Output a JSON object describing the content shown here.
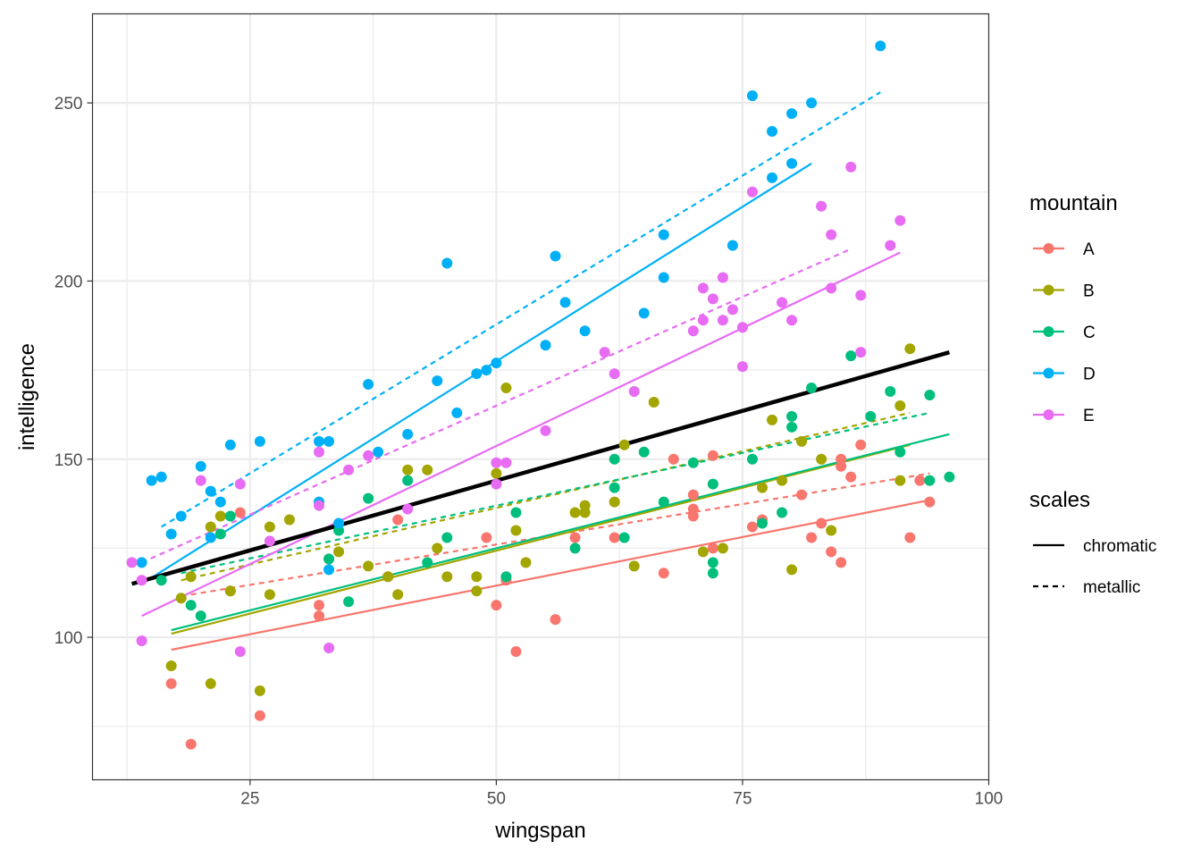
{
  "chart_data": {
    "type": "scatter",
    "xlabel": "wingspan",
    "ylabel": "intelligence",
    "xlim": [
      9,
      100
    ],
    "ylim": [
      60,
      275
    ],
    "xticks": [
      25,
      50,
      75,
      100
    ],
    "xtick_labels": [
      "25",
      "50",
      "75",
      "100"
    ],
    "yticks": [
      100,
      150,
      200,
      250
    ],
    "ytick_labels": [
      "100",
      "150",
      "200",
      "250"
    ],
    "legend_color_title": "mountain",
    "legend_linetype_title": "scales",
    "colors": {
      "A": "#F8766D",
      "B": "#A3A500",
      "C": "#00BF7D",
      "D": "#00B0F6",
      "E": "#E76BF3",
      "overall": "#000000"
    },
    "series": [
      {
        "name": "A",
        "points": [
          [
            19,
            70
          ],
          [
            26,
            78
          ],
          [
            17,
            87
          ],
          [
            23,
            113
          ],
          [
            32,
            106
          ],
          [
            32,
            109
          ],
          [
            33,
            122
          ],
          [
            39,
            117
          ],
          [
            40,
            133
          ],
          [
            49,
            128
          ],
          [
            50,
            109
          ],
          [
            51,
            116
          ],
          [
            52,
            96
          ],
          [
            56,
            105
          ],
          [
            58,
            128
          ],
          [
            62,
            128
          ],
          [
            67,
            118
          ],
          [
            68,
            150
          ],
          [
            70,
            134
          ],
          [
            70,
            136
          ],
          [
            70,
            140
          ],
          [
            72,
            125
          ],
          [
            72,
            151
          ],
          [
            76,
            131
          ],
          [
            77,
            133
          ],
          [
            81,
            140
          ],
          [
            82,
            128
          ],
          [
            83,
            132
          ],
          [
            84,
            124
          ],
          [
            85,
            121
          ],
          [
            85,
            148
          ],
          [
            85,
            150
          ],
          [
            86,
            145
          ],
          [
            87,
            154
          ],
          [
            92,
            128
          ],
          [
            93,
            144
          ],
          [
            94,
            138
          ],
          [
            24,
            135
          ]
        ]
      },
      {
        "name": "B",
        "points": [
          [
            17,
            92
          ],
          [
            18,
            111
          ],
          [
            19,
            117
          ],
          [
            21,
            131
          ],
          [
            21,
            87
          ],
          [
            22,
            134
          ],
          [
            23,
            113
          ],
          [
            26,
            85
          ],
          [
            27,
            112
          ],
          [
            27,
            131
          ],
          [
            29,
            133
          ],
          [
            34,
            124
          ],
          [
            37,
            120
          ],
          [
            39,
            117
          ],
          [
            40,
            112
          ],
          [
            41,
            147
          ],
          [
            43,
            147
          ],
          [
            44,
            125
          ],
          [
            45,
            117
          ],
          [
            48,
            113
          ],
          [
            48,
            117
          ],
          [
            50,
            146
          ],
          [
            51,
            170
          ],
          [
            52,
            130
          ],
          [
            53,
            121
          ],
          [
            58,
            135
          ],
          [
            59,
            137
          ],
          [
            59,
            135
          ],
          [
            62,
            138
          ],
          [
            63,
            154
          ],
          [
            64,
            120
          ],
          [
            66,
            166
          ],
          [
            71,
            124
          ],
          [
            73,
            125
          ],
          [
            77,
            142
          ],
          [
            78,
            161
          ],
          [
            79,
            144
          ],
          [
            80,
            119
          ],
          [
            81,
            155
          ],
          [
            83,
            150
          ],
          [
            84,
            130
          ],
          [
            91,
            144
          ],
          [
            91,
            165
          ],
          [
            92,
            181
          ]
        ]
      },
      {
        "name": "C",
        "points": [
          [
            16,
            116
          ],
          [
            19,
            109
          ],
          [
            20,
            106
          ],
          [
            22,
            129
          ],
          [
            23,
            134
          ],
          [
            33,
            122
          ],
          [
            34,
            130
          ],
          [
            35,
            110
          ],
          [
            37,
            139
          ],
          [
            41,
            144
          ],
          [
            43,
            121
          ],
          [
            45,
            128
          ],
          [
            51,
            117
          ],
          [
            52,
            135
          ],
          [
            58,
            125
          ],
          [
            62,
            150
          ],
          [
            62,
            142
          ],
          [
            63,
            128
          ],
          [
            65,
            152
          ],
          [
            67,
            138
          ],
          [
            70,
            149
          ],
          [
            72,
            143
          ],
          [
            72,
            121
          ],
          [
            72,
            118
          ],
          [
            76,
            150
          ],
          [
            77,
            132
          ],
          [
            79,
            135
          ],
          [
            80,
            159
          ],
          [
            80,
            162
          ],
          [
            82,
            170
          ],
          [
            86,
            179
          ],
          [
            88,
            162
          ],
          [
            90,
            169
          ],
          [
            91,
            152
          ],
          [
            94,
            144
          ],
          [
            94,
            168
          ],
          [
            96,
            145
          ]
        ]
      },
      {
        "name": "D",
        "points": [
          [
            14,
            121
          ],
          [
            15,
            144
          ],
          [
            16,
            145
          ],
          [
            17,
            129
          ],
          [
            18,
            134
          ],
          [
            20,
            148
          ],
          [
            21,
            128
          ],
          [
            21,
            141
          ],
          [
            22,
            138
          ],
          [
            23,
            154
          ],
          [
            26,
            155
          ],
          [
            32,
            155
          ],
          [
            32,
            138
          ],
          [
            33,
            155
          ],
          [
            33,
            119
          ],
          [
            34,
            132
          ],
          [
            37,
            171
          ],
          [
            38,
            152
          ],
          [
            41,
            157
          ],
          [
            44,
            172
          ],
          [
            45,
            205
          ],
          [
            46,
            163
          ],
          [
            48,
            174
          ],
          [
            49,
            175
          ],
          [
            50,
            177
          ],
          [
            55,
            182
          ],
          [
            56,
            207
          ],
          [
            57,
            194
          ],
          [
            59,
            186
          ],
          [
            65,
            191
          ],
          [
            67,
            201
          ],
          [
            67,
            213
          ],
          [
            74,
            210
          ],
          [
            76,
            252
          ],
          [
            78,
            229
          ],
          [
            78,
            242
          ],
          [
            80,
            233
          ],
          [
            80,
            247
          ],
          [
            82,
            250
          ],
          [
            89,
            266
          ]
        ]
      },
      {
        "name": "E",
        "points": [
          [
            13,
            121
          ],
          [
            14,
            116
          ],
          [
            14,
            99
          ],
          [
            20,
            144
          ],
          [
            24,
            96
          ],
          [
            24,
            143
          ],
          [
            27,
            127
          ],
          [
            32,
            152
          ],
          [
            32,
            137
          ],
          [
            33,
            97
          ],
          [
            35,
            147
          ],
          [
            37,
            151
          ],
          [
            41,
            136
          ],
          [
            50,
            149
          ],
          [
            50,
            143
          ],
          [
            51,
            149
          ],
          [
            55,
            158
          ],
          [
            61,
            180
          ],
          [
            62,
            174
          ],
          [
            64,
            169
          ],
          [
            70,
            186
          ],
          [
            71,
            198
          ],
          [
            71,
            189
          ],
          [
            72,
            195
          ],
          [
            73,
            189
          ],
          [
            73,
            201
          ],
          [
            74,
            192
          ],
          [
            75,
            176
          ],
          [
            75,
            187
          ],
          [
            76,
            225
          ],
          [
            79,
            194
          ],
          [
            80,
            189
          ],
          [
            83,
            221
          ],
          [
            84,
            198
          ],
          [
            84,
            213
          ],
          [
            86,
            232
          ],
          [
            87,
            180
          ],
          [
            87,
            196
          ],
          [
            90,
            210
          ],
          [
            91,
            217
          ]
        ]
      }
    ],
    "fit_lines": [
      {
        "series": "A",
        "linetype": "chromatic",
        "x": [
          17,
          94
        ],
        "y": [
          96.5,
          138.5
        ]
      },
      {
        "series": "A",
        "linetype": "metallic",
        "x": [
          19,
          94
        ],
        "y": [
          112,
          146
        ]
      },
      {
        "series": "B",
        "linetype": "chromatic",
        "x": [
          17,
          92
        ],
        "y": [
          101,
          154
        ]
      },
      {
        "series": "B",
        "linetype": "metallic",
        "x": [
          18,
          92
        ],
        "y": [
          116,
          163
        ]
      },
      {
        "series": "C",
        "linetype": "chromatic",
        "x": [
          17,
          96
        ],
        "y": [
          102,
          157
        ]
      },
      {
        "series": "C",
        "linetype": "metallic",
        "x": [
          18,
          94
        ],
        "y": [
          118,
          163
        ]
      },
      {
        "series": "D",
        "linetype": "chromatic",
        "x": [
          14,
          82
        ],
        "y": [
          115,
          233
        ]
      },
      {
        "series": "D",
        "linetype": "metallic",
        "x": [
          16,
          89
        ],
        "y": [
          131,
          253
        ]
      },
      {
        "series": "E",
        "linetype": "chromatic",
        "x": [
          14,
          91
        ],
        "y": [
          106,
          208
        ]
      },
      {
        "series": "E",
        "linetype": "metallic",
        "x": [
          14,
          86
        ],
        "y": [
          121,
          209
        ]
      },
      {
        "series": "overall",
        "linetype": "chromatic",
        "x": [
          13,
          96
        ],
        "y": [
          115,
          180
        ]
      }
    ],
    "legend_color": [
      "A",
      "B",
      "C",
      "D",
      "E"
    ],
    "legend_linetype": [
      "chromatic",
      "metallic"
    ]
  }
}
